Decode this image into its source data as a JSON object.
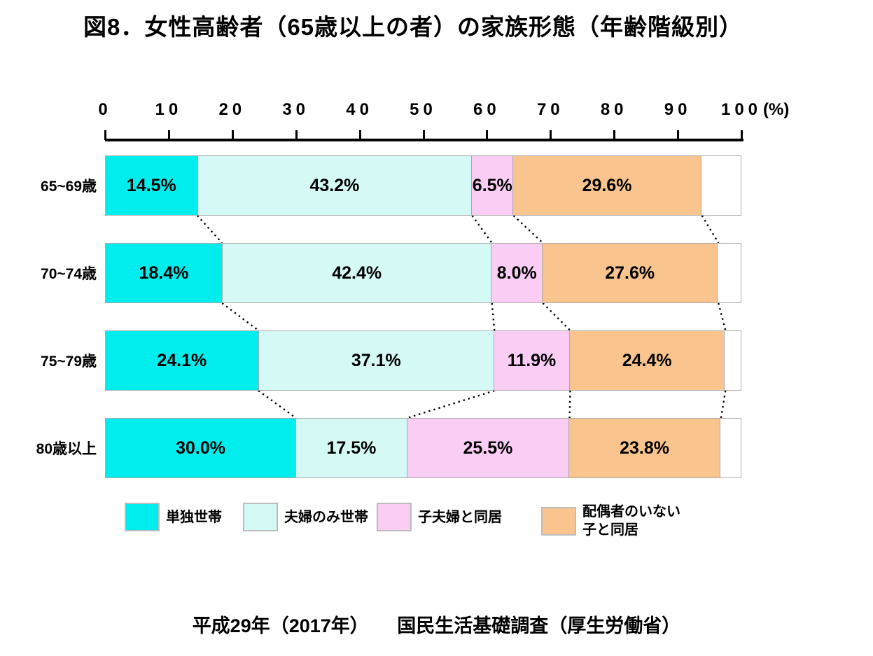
{
  "title": "図8．女性高齢者（65歳以上の者）の家族形態（年齢階級別）",
  "axis": {
    "ticks": [
      0,
      10,
      20,
      30,
      40,
      50,
      60,
      70,
      80,
      90,
      100
    ],
    "unit_label": "(%)",
    "max": 100
  },
  "chart_data": {
    "type": "bar",
    "orientation": "horizontal",
    "stacked": true,
    "title": "図8．女性高齢者（65歳以上の者）の家族形態（年齢階級別）",
    "xlim": [
      0,
      100
    ],
    "xlabel": "(%)",
    "grid": false,
    "legend_position": "bottom",
    "categories": [
      "65~69歳",
      "70~74歳",
      "75~79歳",
      "80歳以上"
    ],
    "series": [
      {
        "name": "単独世帯",
        "color": "#00eded",
        "values": [
          14.5,
          18.4,
          24.1,
          30.0
        ]
      },
      {
        "name": "夫婦のみ世帯",
        "color": "#d5faf6",
        "values": [
          43.2,
          42.4,
          37.1,
          17.5
        ]
      },
      {
        "name": "子夫婦と同居",
        "color": "#facdf5",
        "values": [
          6.5,
          8.0,
          11.9,
          25.5
        ]
      },
      {
        "name": "配偶者のいない子と同居",
        "color": "#f9c48e",
        "values": [
          29.6,
          27.6,
          24.4,
          23.8
        ]
      }
    ],
    "value_label_format": "percent_one_decimal",
    "connector_lines": "dotted lines join segment boundaries of adjacent bars"
  },
  "legend": {
    "items": [
      {
        "label": "単独世帯"
      },
      {
        "label": "夫婦のみ世帯"
      },
      {
        "label": "子夫婦と同居"
      },
      {
        "label": "配偶者のいない\n子と同居"
      }
    ]
  },
  "source_note": "平成29年（2017年）　　国民生活基礎調査（厚生労働省）"
}
